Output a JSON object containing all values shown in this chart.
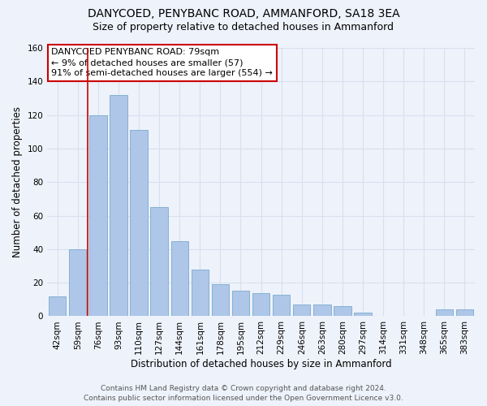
{
  "title": "DANYCOED, PENYBANC ROAD, AMMANFORD, SA18 3EA",
  "subtitle": "Size of property relative to detached houses in Ammanford",
  "xlabel": "Distribution of detached houses by size in Ammanford",
  "ylabel": "Number of detached properties",
  "categories": [
    "42sqm",
    "59sqm",
    "76sqm",
    "93sqm",
    "110sqm",
    "127sqm",
    "144sqm",
    "161sqm",
    "178sqm",
    "195sqm",
    "212sqm",
    "229sqm",
    "246sqm",
    "263sqm",
    "280sqm",
    "297sqm",
    "314sqm",
    "331sqm",
    "348sqm",
    "365sqm",
    "383sqm"
  ],
  "values": [
    12,
    40,
    120,
    132,
    111,
    65,
    45,
    28,
    19,
    15,
    14,
    13,
    7,
    7,
    6,
    2,
    0,
    0,
    0,
    4,
    4
  ],
  "bar_color": "#aec6e8",
  "bar_edgecolor": "#7aabcf",
  "background_color": "#eef2fa",
  "grid_color": "#d8e0ef",
  "annotation_box_text": [
    "DANYCOED PENYBANC ROAD: 79sqm",
    "← 9% of detached houses are smaller (57)",
    "91% of semi-detached houses are larger (554) →"
  ],
  "vline_x": 2,
  "vline_color": "#cc0000",
  "ylim": [
    0,
    160
  ],
  "yticks": [
    0,
    20,
    40,
    60,
    80,
    100,
    120,
    140,
    160
  ],
  "footer_line1": "Contains HM Land Registry data © Crown copyright and database right 2024.",
  "footer_line2": "Contains public sector information licensed under the Open Government Licence v3.0.",
  "title_fontsize": 10,
  "subtitle_fontsize": 9,
  "xlabel_fontsize": 8.5,
  "ylabel_fontsize": 8.5,
  "tick_fontsize": 7.5,
  "annotation_fontsize": 8,
  "footer_fontsize": 6.5
}
